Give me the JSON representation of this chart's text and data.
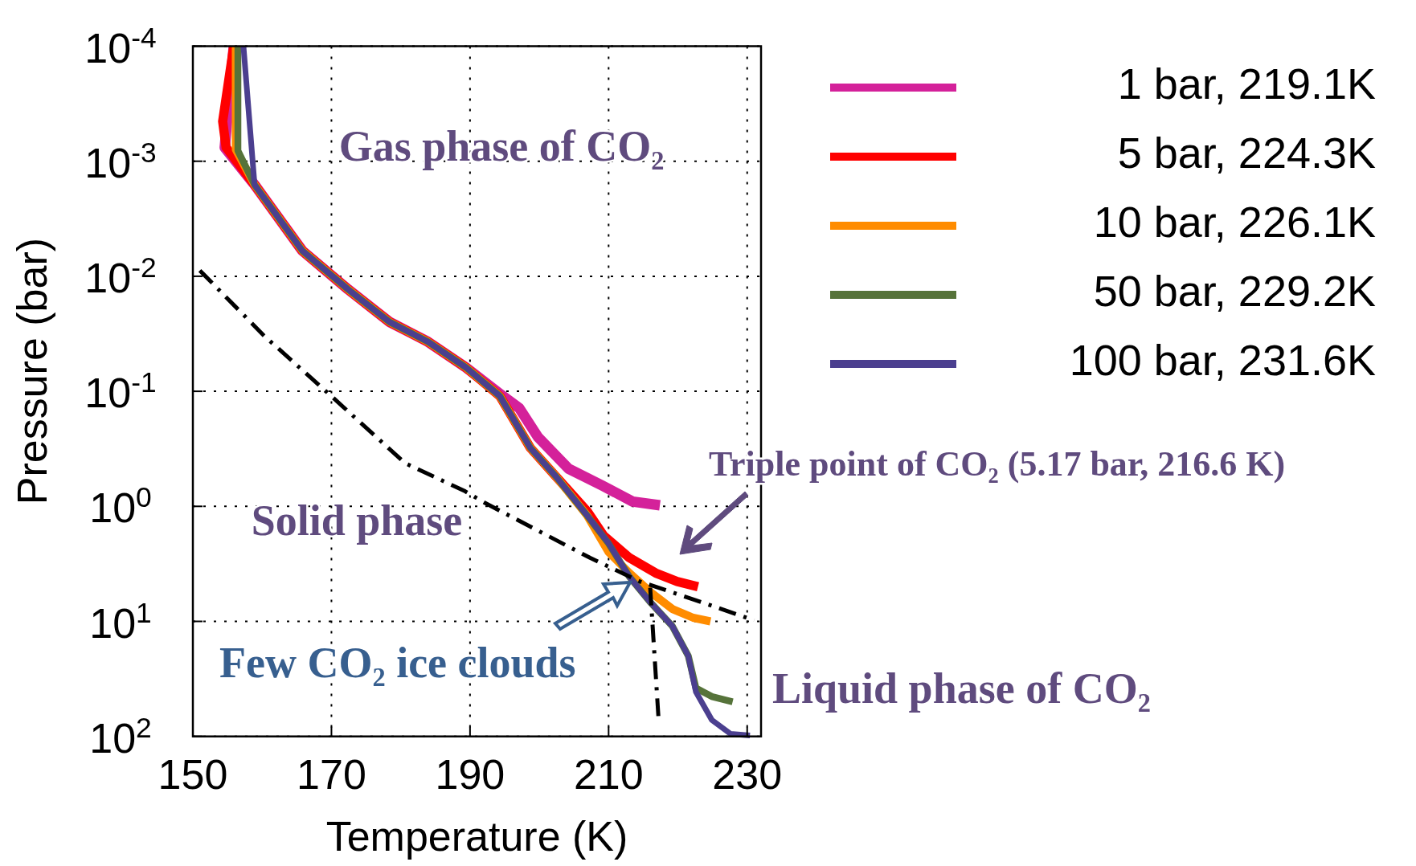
{
  "chart_data": {
    "type": "line",
    "xlabel": "Temperature (K)",
    "ylabel": "Pressure (bar)",
    "xlim": [
      150,
      232
    ],
    "xticks": [
      150,
      170,
      190,
      210,
      230
    ],
    "ylim": [
      100,
      0.0001
    ],
    "log": "y",
    "yticks": [
      {
        "value": 0.0001,
        "label": "10$^{-4}$"
      },
      {
        "value": 0.001,
        "label": "10$^{-3}$"
      },
      {
        "value": 0.01,
        "label": "10$^{-2}$"
      },
      {
        "value": 0.1,
        "label": "10$^{-1}$"
      },
      {
        "value": 1,
        "label": "10$^{0}$"
      },
      {
        "value": 10,
        "label": "10$^{1}$"
      },
      {
        "value": 100,
        "label": "10$^{2}$"
      }
    ],
    "grid": true,
    "legend": "top right",
    "marker": "none",
    "series": [
      {
        "name": "1 bar, 219.1K",
        "color": "#d4219a",
        "x": [
          155.9,
          154.6,
          158.9,
          165.8,
          172.4,
          178.4,
          183.9,
          189.4,
          194.3,
          197.1,
          199.8,
          204.2,
          209.1,
          213.5,
          217.4
        ],
        "values": [
          0.0001,
          0.00076,
          0.0016,
          0.006,
          0.013,
          0.025,
          0.037,
          0.062,
          0.105,
          0.14,
          0.25,
          0.47,
          0.66,
          0.91,
          0.98
        ]
      },
      {
        "name": "5 bar, 224.3K",
        "color": "#ff0000",
        "x": [
          155.9,
          154.3,
          154.8,
          158.9,
          165.8,
          172.4,
          178.4,
          183.9,
          189.4,
          194.3,
          198.7,
          202.4,
          206.9,
          209.3,
          213.0,
          216.8,
          219.9,
          222.9
        ],
        "values": [
          0.0001,
          0.00045,
          0.00076,
          0.0016,
          0.006,
          0.013,
          0.025,
          0.037,
          0.062,
          0.11,
          0.31,
          0.55,
          1.1,
          1.8,
          2.8,
          3.8,
          4.5,
          5.0
        ]
      },
      {
        "name": "10 bar, 226.1K",
        "color": "#ff8c00",
        "x": [
          156.2,
          156.2,
          158.9,
          165.8,
          172.4,
          178.4,
          183.9,
          189.4,
          194.3,
          198.7,
          202.4,
          206.9,
          210.0,
          213.0,
          216.1,
          219.2,
          222.2,
          224.7
        ],
        "values": [
          0.0001,
          0.00079,
          0.0016,
          0.006,
          0.013,
          0.025,
          0.037,
          0.062,
          0.11,
          0.31,
          0.55,
          1.2,
          2.5,
          3.8,
          5.6,
          7.8,
          9.3,
          10
        ]
      },
      {
        "name": "50 bar, 229.2K",
        "color": "#56733a",
        "x": [
          156.5,
          156.5,
          158.9,
          165.8,
          172.4,
          178.4,
          183.9,
          189.4,
          194.3,
          198.7,
          202.4,
          206.9,
          210.0,
          213.0,
          216.1,
          219.2,
          221.5,
          222.6,
          224.9,
          227.9
        ],
        "values": [
          0.0001,
          0.00081,
          0.0016,
          0.006,
          0.013,
          0.025,
          0.037,
          0.062,
          0.11,
          0.31,
          0.55,
          1.2,
          2.1,
          4.1,
          6.9,
          11,
          20,
          38,
          45,
          50
        ]
      },
      {
        "name": "100 bar, 231.6K",
        "color": "#4b3f8f",
        "x": [
          157.3,
          158.9,
          165.8,
          172.4,
          178.4,
          183.9,
          189.4,
          194.3,
          198.7,
          202.4,
          206.9,
          210.0,
          213.0,
          216.1,
          219.2,
          221.5,
          222.6,
          224.9,
          227.6,
          230.4
        ],
        "values": [
          0.0001,
          0.0016,
          0.006,
          0.013,
          0.025,
          0.037,
          0.062,
          0.11,
          0.31,
          0.55,
          1.2,
          2.1,
          4.1,
          6.9,
          11,
          20,
          41,
          72,
          95,
          98
        ]
      },
      {
        "color": "#000000",
        "line_style": "dashed",
        "x": [
          151.0,
          160.3,
          169.6,
          180.6,
          189.3,
          192.1,
          207.3,
          214.5,
          223.7,
          231.0
        ],
        "values": [
          0.0089,
          0.033,
          0.105,
          0.42,
          0.74,
          0.93,
          2.8,
          4.5,
          6.9,
          9.8
        ]
      },
      {
        "color": "#000000",
        "line_style": "dashed",
        "x": [
          216.0,
          217.2
        ],
        "values": [
          5.1,
          69
        ]
      }
    ],
    "annotations": [
      "Gas phase of CO₂",
      "Solid phase",
      "Triple point of CO₂ (5.17 bar, 216.6 K)",
      "Few CO₂ ice clouds",
      "Liquid phase of CO₂"
    ]
  }
}
